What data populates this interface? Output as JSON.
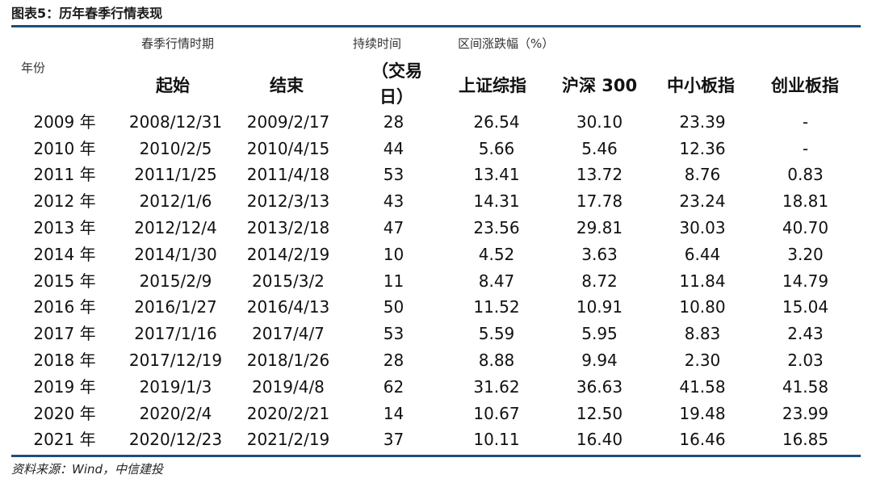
{
  "title": "图表5：历年春季行情表现",
  "header": {
    "period_group": "春季行情时期",
    "duration_label": "持续时间",
    "range_group": "区间涨跌幅（%）",
    "year_label": "年份",
    "start_label": "起始",
    "end_label": "结束",
    "duration_unit_1": "（交易",
    "duration_unit_2": "日）",
    "col_sh": "上证综指",
    "col_hs300": "沪深 300",
    "col_sme": "中小板指",
    "col_chinext": "创业板指"
  },
  "rows": [
    {
      "year": "2009 年",
      "start": "2008/12/31",
      "end": "2009/2/17",
      "days": "28",
      "sh": "26.54",
      "hs300": "30.10",
      "sme": "23.39",
      "chinext": "-"
    },
    {
      "year": "2010 年",
      "start": "2010/2/5",
      "end": "2010/4/15",
      "days": "44",
      "sh": "5.66",
      "hs300": "5.46",
      "sme": "12.36",
      "chinext": "-"
    },
    {
      "year": "2011 年",
      "start": "2011/1/25",
      "end": "2011/4/18",
      "days": "53",
      "sh": "13.41",
      "hs300": "13.72",
      "sme": "8.76",
      "chinext": "0.83"
    },
    {
      "year": "2012 年",
      "start": "2012/1/6",
      "end": "2012/3/13",
      "days": "43",
      "sh": "14.31",
      "hs300": "17.78",
      "sme": "23.24",
      "chinext": "18.81"
    },
    {
      "year": "2013 年",
      "start": "2012/12/4",
      "end": "2013/2/18",
      "days": "47",
      "sh": "23.56",
      "hs300": "29.81",
      "sme": "30.03",
      "chinext": "40.70"
    },
    {
      "year": "2014 年",
      "start": "2014/1/30",
      "end": "2014/2/19",
      "days": "10",
      "sh": "4.52",
      "hs300": "3.63",
      "sme": "6.44",
      "chinext": "3.20"
    },
    {
      "year": "2015 年",
      "start": "2015/2/9",
      "end": "2015/3/2",
      "days": "11",
      "sh": "8.47",
      "hs300": "8.72",
      "sme": "11.84",
      "chinext": "14.79"
    },
    {
      "year": "2016 年",
      "start": "2016/1/27",
      "end": "2016/4/13",
      "days": "50",
      "sh": "11.52",
      "hs300": "10.91",
      "sme": "10.80",
      "chinext": "15.04"
    },
    {
      "year": "2017 年",
      "start": "2017/1/16",
      "end": "2017/4/7",
      "days": "53",
      "sh": "5.59",
      "hs300": "5.95",
      "sme": "8.83",
      "chinext": "2.43"
    },
    {
      "year": "2018 年",
      "start": "2017/12/19",
      "end": "2018/1/26",
      "days": "28",
      "sh": "8.88",
      "hs300": "9.94",
      "sme": "2.30",
      "chinext": "2.03"
    },
    {
      "year": "2019 年",
      "start": "2019/1/3",
      "end": "2019/4/8",
      "days": "62",
      "sh": "31.62",
      "hs300": "36.63",
      "sme": "41.58",
      "chinext": "41.58"
    },
    {
      "year": "2020 年",
      "start": "2020/2/4",
      "end": "2020/2/21",
      "days": "14",
      "sh": "10.67",
      "hs300": "12.50",
      "sme": "19.48",
      "chinext": "23.99"
    },
    {
      "year": "2021 年",
      "start": "2020/12/23",
      "end": "2021/2/19",
      "days": "37",
      "sh": "10.11",
      "hs300": "16.40",
      "sme": "16.46",
      "chinext": "16.85"
    }
  ],
  "source": "资料来源：Wind，中信建投"
}
